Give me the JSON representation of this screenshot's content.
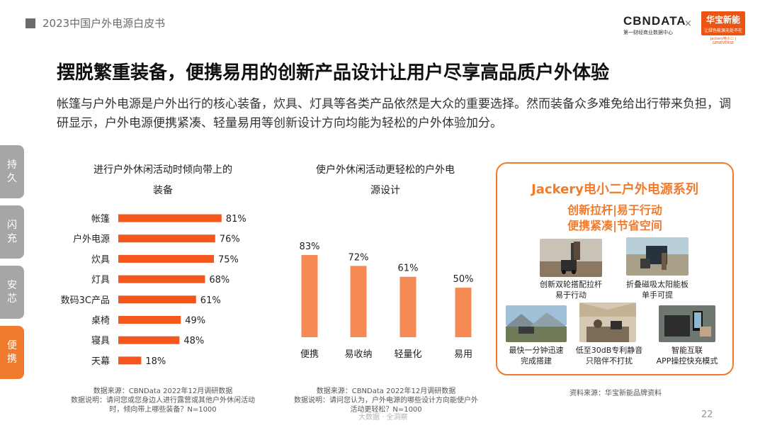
{
  "header": {
    "tag_text": "2023中国户外电源白皮书"
  },
  "logos": {
    "cbn_main": "CBNDATA",
    "cbn_sub": "第一财经商业数据中心",
    "separator": "×",
    "hb_main": "华宝新能",
    "hb_sub": "让绿色能源无处不在",
    "hb_en": "Jackery电小二 | GENEVERSE"
  },
  "title": "摆脱繁重装备，便携易用的创新产品设计让用户尽享高品质户外体验",
  "intro": "帐篷与户外电源是户外出行的核心装备，炊具、灯具等各类产品依然是大众的重要选择。然而装备众多难免给出行带来负担，调研显示，户外电源便携紧凑、轻量易用等创新设计方向均能为轻松的户外体验加分。",
  "side_tabs": [
    {
      "label": "持久",
      "active": false
    },
    {
      "label": "闪充",
      "active": false
    },
    {
      "label": "安芯",
      "active": false
    },
    {
      "label": "便携",
      "active": true
    }
  ],
  "chart_data": [
    {
      "type": "bar",
      "orientation": "horizontal",
      "title_line1": "进行户外休闲活动时倾向带上的",
      "title_line2": "装备",
      "categories": [
        "帐篷",
        "户外电源",
        "炊具",
        "灯具",
        "数码3C产品",
        "桌椅",
        "寝具",
        "天幕"
      ],
      "values": [
        81,
        76,
        75,
        68,
        61,
        49,
        48,
        18
      ],
      "value_labels": [
        "81%",
        "76%",
        "75%",
        "68%",
        "61%",
        "49%",
        "48%",
        "18%"
      ],
      "unit": "%",
      "color": "#f4561c",
      "xlim": [
        0,
        100
      ],
      "grid": false,
      "source": "数据来源：CBNData 2022年12月调研数据",
      "note_line1": "数据说明：请问您或您身边人进行露营或其他户外休闲活动",
      "note_line2": "时，倾向带上哪些装备？N=1000"
    },
    {
      "type": "bar",
      "orientation": "vertical",
      "title_line1": "使户外休闲活动更轻松的户外电",
      "title_line2": "源设计",
      "categories": [
        "便携",
        "易收纳",
        "轻量化",
        "易用"
      ],
      "values": [
        83,
        72,
        61,
        50
      ],
      "value_labels": [
        "83%",
        "72%",
        "61%",
        "50%"
      ],
      "unit": "%",
      "color": "#f58a55",
      "ylim": [
        0,
        100
      ],
      "grid": false,
      "source": "数据来源：CBNData 2022年12月调研数据",
      "note_line1": "数据说明：请问您认为，户外电源的哪些设计方向能使户外",
      "note_line2": "活动更轻松？N=1000"
    }
  ],
  "promo": {
    "title": "Jackery电小二户外电源系列",
    "slogan1": "创新拉杆|易于行动",
    "slogan2": "便携紧凑|节省空间",
    "features": [
      {
        "cap1": "创新双轮搭配拉杆",
        "cap2": "易于行动"
      },
      {
        "cap1": "折叠磁吸太阳能板",
        "cap2": "单手可提"
      },
      {
        "cap1": "最快一分钟迅速",
        "cap2": "完成搭建"
      },
      {
        "cap1": "低至30dB专利静音",
        "cap2": "只陪伴不打扰"
      },
      {
        "cap1": "智能互联",
        "cap2": "APP操控快充模式"
      }
    ],
    "source": "资料来源：华宝新能品牌资料"
  },
  "watermark": "大数据 · 全洞察",
  "page_number": "22"
}
